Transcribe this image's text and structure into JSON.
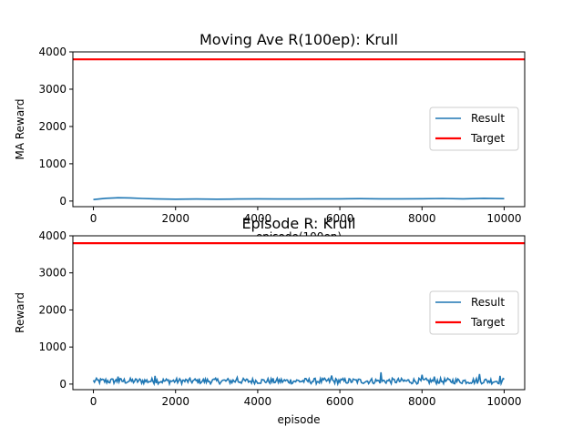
{
  "chart_data": [
    {
      "type": "line",
      "title": "Moving Ave R(100ep): Krull",
      "xlabel": "episode(100ep)",
      "ylabel": "MA Reward",
      "xlim": [
        -500,
        10500
      ],
      "ylim": [
        -150,
        4000
      ],
      "xticks": [
        0,
        2000,
        4000,
        6000,
        8000,
        10000
      ],
      "yticks": [
        0,
        1000,
        2000,
        3000,
        4000
      ],
      "grid": false,
      "legend": "center-right",
      "series": [
        {
          "name": "Result",
          "color": "#1f77b4",
          "x": [
            0,
            300,
            600,
            900,
            1200,
            1500,
            2000,
            2500,
            3000,
            3500,
            4000,
            4500,
            5000,
            5500,
            6000,
            6500,
            7000,
            7500,
            8000,
            8500,
            9000,
            9500,
            10000
          ],
          "y": [
            40,
            75,
            90,
            85,
            70,
            60,
            50,
            55,
            50,
            55,
            60,
            55,
            55,
            60,
            60,
            65,
            60,
            60,
            62,
            70,
            60,
            75,
            65
          ]
        },
        {
          "name": "Target",
          "color": "#ff0000",
          "x": [
            -500,
            10500
          ],
          "y": [
            3800,
            3800
          ]
        }
      ]
    },
    {
      "type": "line",
      "title": "Episode R: Krull",
      "xlabel": "episode",
      "ylabel": "Reward",
      "xlim": [
        -500,
        10500
      ],
      "ylim": [
        -150,
        4000
      ],
      "xticks": [
        0,
        2000,
        4000,
        6000,
        8000,
        10000
      ],
      "yticks": [
        0,
        1000,
        2000,
        3000,
        4000
      ],
      "grid": false,
      "legend": "center-right",
      "series": [
        {
          "name": "Result",
          "color": "#1f77b4",
          "x": [
            0,
            10000
          ],
          "y": [
            60,
            60
          ],
          "noise": {
            "low": 5,
            "high": 160,
            "spikes": [
              [
                600,
                200
              ],
              [
                1500,
                220
              ],
              [
                3500,
                180
              ],
              [
                5800,
                230
              ],
              [
                7000,
                320
              ],
              [
                8000,
                250
              ],
              [
                8300,
                200
              ],
              [
                9400,
                270
              ],
              [
                9900,
                220
              ]
            ]
          }
        },
        {
          "name": "Target",
          "color": "#ff0000",
          "x": [
            -500,
            10500
          ],
          "y": [
            3800,
            3800
          ]
        }
      ]
    }
  ]
}
